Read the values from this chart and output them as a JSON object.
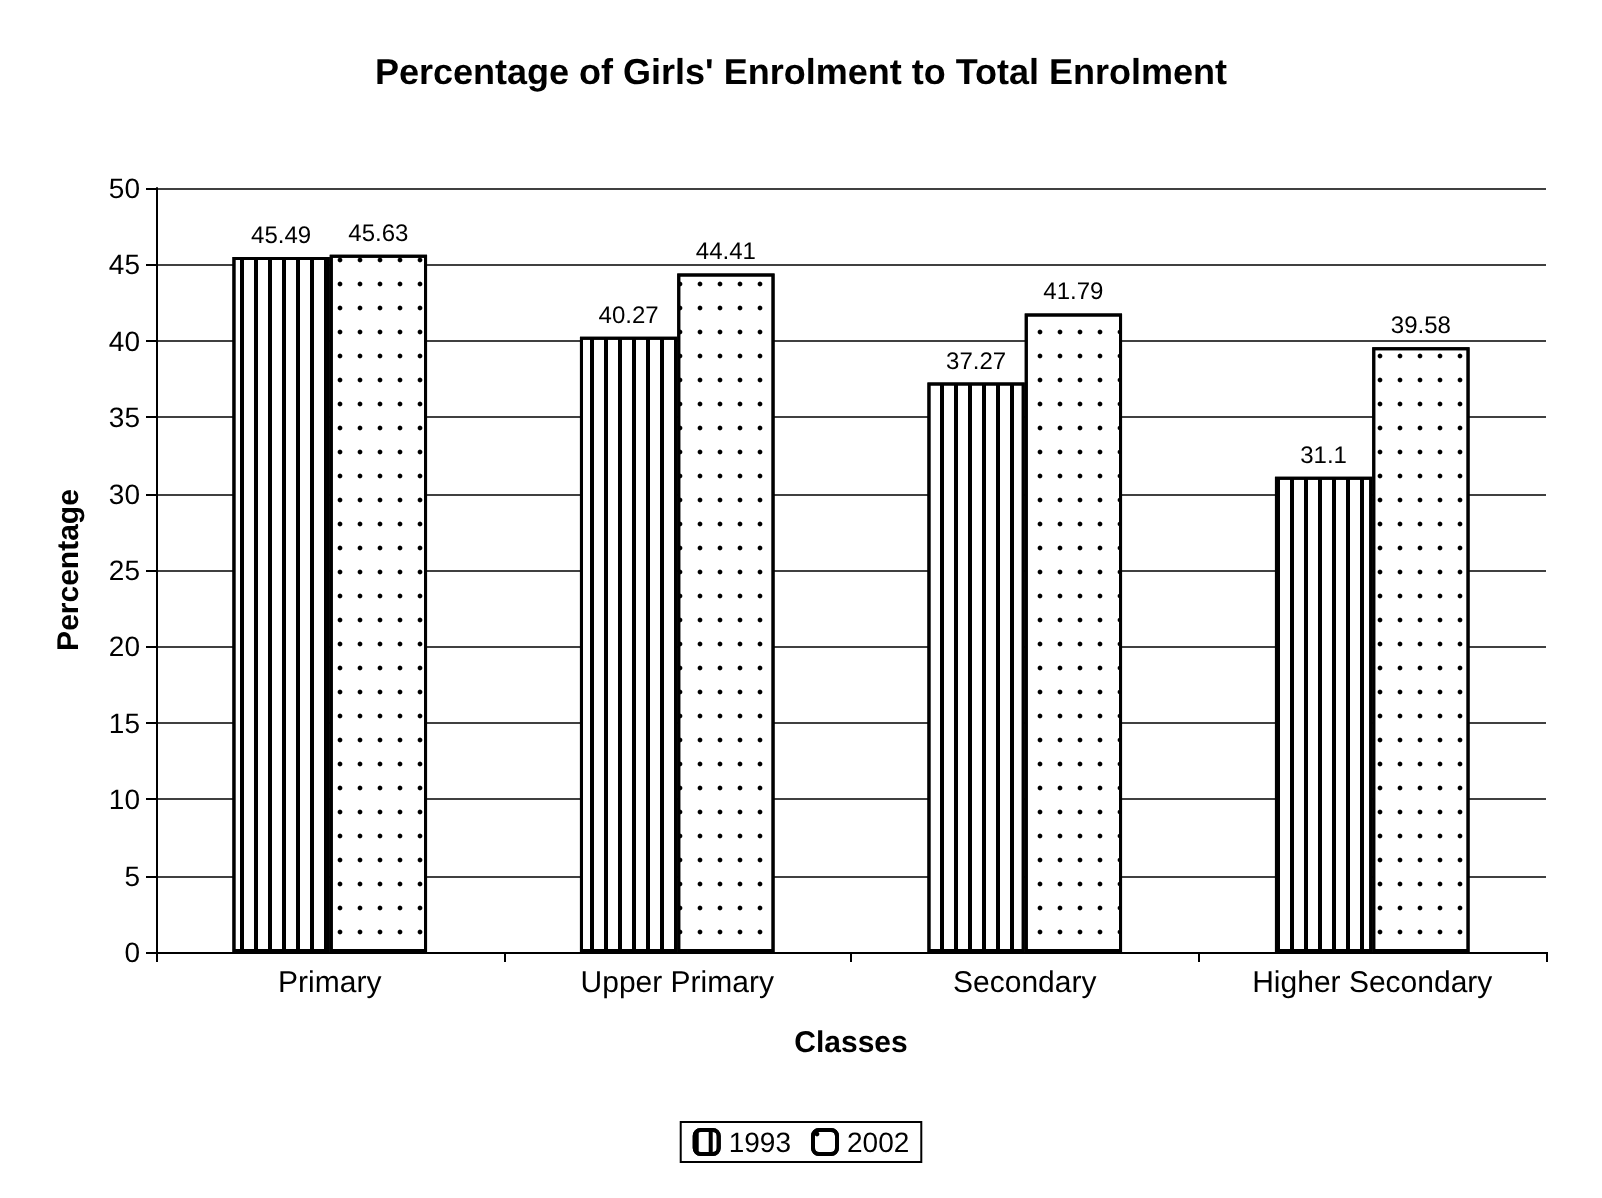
{
  "chart_data": {
    "type": "bar",
    "title": "Percentage of Girls' Enrolment to Total Enrolment",
    "xlabel": "Classes",
    "ylabel": "Percentage",
    "categories": [
      "Primary",
      "Upper Primary",
      "Secondary",
      "Higher Secondary"
    ],
    "series": [
      {
        "name": "1993",
        "color": "#ffffff",
        "values": [
          45.49,
          40.27,
          37.27,
          31.1
        ]
      },
      {
        "name": "2002",
        "color": "#ffffff",
        "values": [
          45.63,
          44.41,
          41.79,
          39.58
        ]
      }
    ],
    "ylim": [
      0,
      50
    ],
    "yticks": [
      0,
      5,
      10,
      15,
      20,
      25,
      30,
      35,
      40,
      45,
      50
    ],
    "grid": "y",
    "legend": "bottom",
    "data_labels": true
  }
}
